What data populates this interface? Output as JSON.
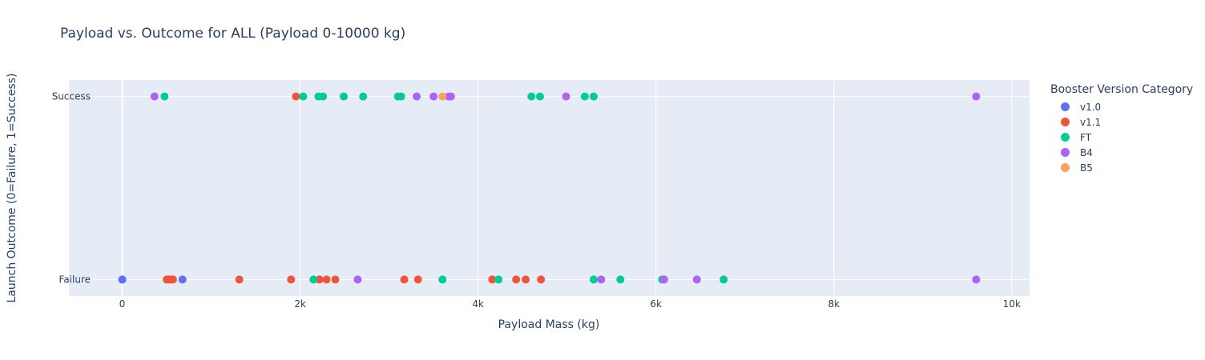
{
  "chart_data": {
    "type": "scatter",
    "title": "Payload vs. Outcome for ALL (Payload 0-10000 kg)",
    "xlabel": "Payload Mass (kg)",
    "ylabel": "Launch Outcome (0=Failure, 1=Success)",
    "xlim": [
      -600,
      10200
    ],
    "ylim": [
      -0.09,
      1.09
    ],
    "x_ticks": [
      {
        "value": 0,
        "label": "0"
      },
      {
        "value": 2000,
        "label": "2k"
      },
      {
        "value": 4000,
        "label": "4k"
      },
      {
        "value": 6000,
        "label": "6k"
      },
      {
        "value": 8000,
        "label": "8k"
      },
      {
        "value": 10000,
        "label": "10k"
      }
    ],
    "y_ticks": [
      {
        "value": 0,
        "label": "Failure"
      },
      {
        "value": 1,
        "label": "Success"
      }
    ],
    "legend_title": "Booster Version Category",
    "legend_position": "right",
    "grid": true,
    "series": [
      {
        "name": "v1.0",
        "color": "#636efa",
        "points": [
          [
            0,
            0
          ],
          [
            0,
            0
          ],
          [
            677,
            0
          ]
        ]
      },
      {
        "name": "v1.1",
        "color": "#ef553b",
        "points": [
          [
            500,
            0
          ],
          [
            525,
            0
          ],
          [
            550,
            0
          ],
          [
            570,
            0
          ],
          [
            1316,
            0
          ],
          [
            1898,
            0
          ],
          [
            2216,
            0
          ],
          [
            2296,
            0
          ],
          [
            2395,
            0
          ],
          [
            3170,
            0
          ],
          [
            3325,
            0
          ],
          [
            4159,
            0
          ],
          [
            4428,
            0
          ],
          [
            4535,
            0
          ],
          [
            4707,
            0
          ],
          [
            1952,
            1
          ]
        ]
      },
      {
        "name": "FT",
        "color": "#00cc96",
        "points": [
          [
            2150,
            0
          ],
          [
            3600,
            0
          ],
          [
            4230,
            0
          ],
          [
            5300,
            0
          ],
          [
            5600,
            0
          ],
          [
            6070,
            0
          ],
          [
            6761,
            0
          ],
          [
            475,
            1
          ],
          [
            2034,
            1
          ],
          [
            2205,
            1
          ],
          [
            2257,
            1
          ],
          [
            2490,
            1
          ],
          [
            2708,
            1
          ],
          [
            3100,
            1
          ],
          [
            3136,
            1
          ],
          [
            4600,
            1
          ],
          [
            4696,
            1
          ],
          [
            5200,
            1
          ],
          [
            5300,
            1
          ]
        ]
      },
      {
        "name": "B4",
        "color": "#ab63fa",
        "points": [
          [
            2647,
            0
          ],
          [
            5384,
            0
          ],
          [
            6092,
            0
          ],
          [
            6460,
            0
          ],
          [
            9600,
            0
          ],
          [
            362,
            1
          ],
          [
            3310,
            1
          ],
          [
            3500,
            1
          ],
          [
            3669,
            1
          ],
          [
            3696,
            1
          ],
          [
            4990,
            1
          ],
          [
            9600,
            1
          ]
        ]
      },
      {
        "name": "B5",
        "color": "#ffa15a",
        "points": [
          [
            3600,
            1
          ]
        ]
      }
    ]
  }
}
